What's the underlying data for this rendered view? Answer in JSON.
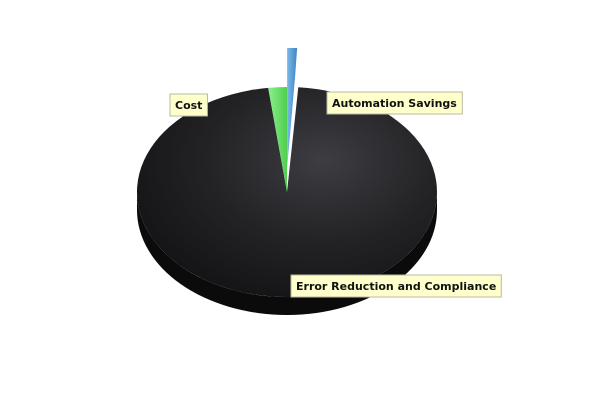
{
  "chart_data": {
    "type": "pie",
    "three_d": true,
    "legend": "none",
    "grid": false,
    "slices": [
      {
        "label": "Automation Savings",
        "value": 1.2,
        "color": "#5a9fd6",
        "exploded": true
      },
      {
        "label": "Error Reduction and Compliance",
        "value": 96.8,
        "color": "#1e1e20",
        "exploded": false
      },
      {
        "label": "Cost",
        "value": 2.0,
        "color": "#66dd66",
        "exploded": false
      }
    ]
  }
}
